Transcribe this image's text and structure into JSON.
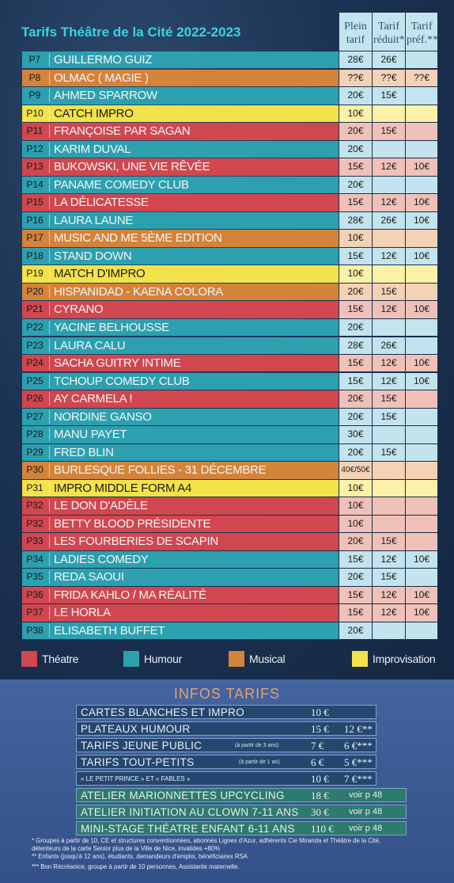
{
  "title": "Tarifs Théâtre de la Cité 2022-2023",
  "headers": {
    "plein": [
      "Plein",
      "tarif"
    ],
    "reduit": [
      "Tarif",
      "réduit*"
    ],
    "pref": [
      "Tarif",
      "préf.**"
    ]
  },
  "colors": {
    "theatre": "#d0474f",
    "humour": "#2da0b0",
    "musical": "#d4833a",
    "impro": "#f4e24a",
    "cell_theatre": "#f0c1b9",
    "cell_humour": "#c3e4ee",
    "cell_musical": "#f3d2b6",
    "cell_impro": "#fbf1a8"
  },
  "rows": [
    {
      "p": "P7",
      "name": "GUILLERMO GUIZ",
      "cat": "humour",
      "plein": "28€",
      "reduit": "26€",
      "pref": ""
    },
    {
      "p": "P8",
      "name": "OLMAC  ( MAGIE )",
      "cat": "musical",
      "plein": "??€",
      "reduit": "??€",
      "pref": "??€"
    },
    {
      "p": "P9",
      "name": "AHMED SPARROW",
      "cat": "humour",
      "plein": "20€",
      "reduit": "15€",
      "pref": ""
    },
    {
      "p": "P10",
      "name": "CATCH IMPRO",
      "cat": "impro",
      "plein": "10€",
      "reduit": "",
      "pref": ""
    },
    {
      "p": "P11",
      "name": "FRANÇOISE PAR SAGAN",
      "cat": "theatre",
      "plein": "20€",
      "reduit": "15€",
      "pref": ""
    },
    {
      "p": "P12",
      "name": "KARIM DUVAL",
      "cat": "humour",
      "plein": "20€",
      "reduit": "",
      "pref": ""
    },
    {
      "p": "P13",
      "name": "BUKOWSKI, UNE VIE RÊVÉE",
      "cat": "theatre",
      "plein": "15€",
      "reduit": "12€",
      "pref": "10€"
    },
    {
      "p": "P14",
      "name": "PANAME COMEDY CLUB",
      "cat": "humour",
      "plein": "20€",
      "reduit": "",
      "pref": ""
    },
    {
      "p": "P15",
      "name": "LA DÉLICATESSE",
      "cat": "theatre",
      "plein": "15€",
      "reduit": "12€",
      "pref": "10€"
    },
    {
      "p": "P16",
      "name": "LAURA LAUNE",
      "cat": "humour",
      "plein": "28€",
      "reduit": "26€",
      "pref": "10€"
    },
    {
      "p": "P17",
      "name": "MUSIC AND ME 5ÈME EDITION",
      "cat": "musical",
      "plein": "10€",
      "reduit": "",
      "pref": ""
    },
    {
      "p": "P18",
      "name": "STAND DOWN",
      "cat": "humour",
      "plein": "15€",
      "reduit": "12€",
      "pref": "10€"
    },
    {
      "p": "P19",
      "name": "MATCH D'IMPRO",
      "cat": "impro",
      "plein": "10€",
      "reduit": "",
      "pref": ""
    },
    {
      "p": "P20",
      "name": "HISPANIDAD - KAENA COLORA",
      "cat": "musical",
      "plein": "20€",
      "reduit": "15€",
      "pref": ""
    },
    {
      "p": "P21",
      "name": "CYRANO",
      "cat": "theatre",
      "plein": "15€",
      "reduit": "12€",
      "pref": "10€"
    },
    {
      "p": "P22",
      "name": "YACINE BELHOUSSE",
      "cat": "humour",
      "plein": "20€",
      "reduit": "",
      "pref": ""
    },
    {
      "p": "P23",
      "name": "LAURA CALU",
      "cat": "humour",
      "plein": "28€",
      "reduit": "26€",
      "pref": ""
    },
    {
      "p": "P24",
      "name": "SACHA GUITRY INTIME",
      "cat": "theatre",
      "plein": "15€",
      "reduit": "12€",
      "pref": "10€"
    },
    {
      "p": "P25",
      "name": "TCHOUP COMEDY CLUB",
      "cat": "humour",
      "plein": "15€",
      "reduit": "12€",
      "pref": "10€"
    },
    {
      "p": "P26",
      "name": "AY CARMELA !",
      "cat": "theatre",
      "plein": "20€",
      "reduit": "15€",
      "pref": ""
    },
    {
      "p": "P27",
      "name": "NORDINE GANSO",
      "cat": "humour",
      "plein": "20€",
      "reduit": "15€",
      "pref": ""
    },
    {
      "p": "P28",
      "name": "MANU PAYET",
      "cat": "humour",
      "plein": "30€",
      "reduit": "",
      "pref": ""
    },
    {
      "p": "P29",
      "name": "FRED BLIN",
      "cat": "humour",
      "plein": "20€",
      "reduit": "15€",
      "pref": ""
    },
    {
      "p": "P30",
      "name": "BURLESQUE FOLLIES - 31 DÉCEMBRE",
      "cat": "musical",
      "plein": "40€/50€",
      "reduit": "",
      "pref": ""
    },
    {
      "p": "P31",
      "name": "IMPRO MIDDLE FORM A4",
      "cat": "impro",
      "plein": "10€",
      "reduit": "",
      "pref": ""
    },
    {
      "p": "P32",
      "name": "LE DON D'ADÈLE",
      "cat": "theatre",
      "plein": "10€",
      "reduit": "",
      "pref": ""
    },
    {
      "p": "P32",
      "name": "BETTY BLOOD PRÉSIDENTE",
      "cat": "theatre",
      "plein": "10€",
      "reduit": "",
      "pref": ""
    },
    {
      "p": "P33",
      "name": "LES FOURBERIES DE SCAPIN",
      "cat": "theatre",
      "plein": "20€",
      "reduit": "15€",
      "pref": ""
    },
    {
      "p": "P34",
      "name": "LADIES COMEDY",
      "cat": "humour",
      "plein": "15€",
      "reduit": "12€",
      "pref": "10€"
    },
    {
      "p": "P35",
      "name": "REDA SAOUI",
      "cat": "humour",
      "plein": "20€",
      "reduit": "15€",
      "pref": ""
    },
    {
      "p": "P36",
      "name": "FRIDA KAHLO / MA RÉALITÉ",
      "cat": "theatre",
      "plein": "15€",
      "reduit": "12€",
      "pref": "10€"
    },
    {
      "p": "P37",
      "name": "LE HORLA",
      "cat": "theatre",
      "plein": "15€",
      "reduit": "12€",
      "pref": "10€"
    },
    {
      "p": "P38",
      "name": "ELISABETH BUFFET",
      "cat": "humour",
      "plein": "20€",
      "reduit": "",
      "pref": ""
    }
  ],
  "legend": [
    {
      "label": "Théatre",
      "cat": "theatre"
    },
    {
      "label": "Humour",
      "cat": "humour"
    },
    {
      "label": "Musical",
      "cat": "musical"
    },
    {
      "label": "Improvisation",
      "cat": "impro"
    }
  ],
  "infos": {
    "title": "INFOS TARIFS",
    "lines": [
      {
        "label": "CARTES BLANCHES ET IMPRO",
        "sub": "",
        "p1": "10 €",
        "p2": "",
        "green": false
      },
      {
        "label": "PLATEAUX HUMOUR",
        "sub": "",
        "p1": "15 €",
        "p2": "12 €**",
        "green": false
      },
      {
        "label": "TARIFS JEUNE PUBLIC",
        "sub": "(à partir de 3 ans)",
        "p1": "7 €",
        "p2": "6 €***",
        "green": false
      },
      {
        "label": "TARIFS TOUT-PETITS",
        "sub": "(à partir de 1 an)",
        "p1": "6 €",
        "p2": "5 €***",
        "green": false
      },
      {
        "label": "« LE PETIT PRINCE » ET « FABLES »",
        "sub": "",
        "p1": "10 €",
        "p2": "7 €***",
        "green": false,
        "small": true
      },
      {
        "label": "ATELIER MARIONNETTES UPCYCLING",
        "sub": "",
        "p1": "18 €",
        "p2": "voir p 48",
        "green": true
      },
      {
        "label": "ATELIER INITIATION AU CLOWN 7-11 ANS",
        "sub": "",
        "p1": "30 €",
        "p2": "voir p 48",
        "green": true
      },
      {
        "label": "MINI-STAGE THÉATRE ENFANT 6-11 ANS",
        "sub": "",
        "p1": "110 €",
        "p2": "voir p 48",
        "green": true
      }
    ],
    "footnotes": [
      "* Groupes à partir de 10, CE et structures conventionnées, abonnés Lignes d'Azur, adhérents Cie Miranda et Théâtre de la Cité,",
      "détenteurs de la carte Senior plus de la Ville de Nice, invalides +80%",
      "** Enfants (jusqu'à 12 ans), étudiants, demandeurs d'emploi, bénéficiaires RSA",
      "*** Bon Récréanice, groupe à partir de 10 personnes, Assistante maternelle."
    ]
  }
}
